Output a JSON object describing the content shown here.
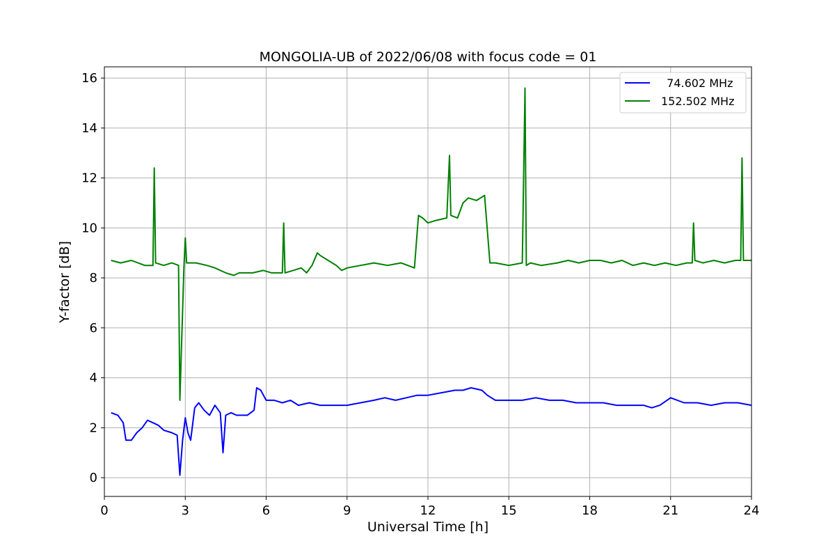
{
  "chart_data": {
    "type": "line",
    "title": "MONGOLIA-UB of 2022/06/08 with focus code = 01",
    "xlabel": "Universal Time [h]",
    "ylabel": "Y-factor [dB]",
    "xlim": [
      0,
      24
    ],
    "ylim": [
      -0.75,
      16.45
    ],
    "xticks": [
      0,
      3,
      6,
      9,
      12,
      15,
      18,
      21,
      24
    ],
    "yticks": [
      0,
      2,
      4,
      6,
      8,
      10,
      12,
      14,
      16
    ],
    "grid": true,
    "legend_position": "top-right",
    "series": [
      {
        "name": "  74.602 MHz",
        "color": "#0000ff",
        "x": [
          0.25,
          0.5,
          0.7,
          0.8,
          1.0,
          1.2,
          1.4,
          1.6,
          1.8,
          2.0,
          2.2,
          2.5,
          2.7,
          2.8,
          2.9,
          3.0,
          3.1,
          3.2,
          3.35,
          3.5,
          3.7,
          3.9,
          4.1,
          4.3,
          4.4,
          4.5,
          4.7,
          4.9,
          5.1,
          5.3,
          5.55,
          5.65,
          5.8,
          6.0,
          6.3,
          6.6,
          6.9,
          7.2,
          7.6,
          8.0,
          8.5,
          9.0,
          9.5,
          10.0,
          10.4,
          10.8,
          11.2,
          11.6,
          12.0,
          12.5,
          13.0,
          13.3,
          13.6,
          14.0,
          14.2,
          14.5,
          15.0,
          15.5,
          16.0,
          16.5,
          17.0,
          17.5,
          18.0,
          18.5,
          19.0,
          19.5,
          20.0,
          20.3,
          20.6,
          21.0,
          21.5,
          22.0,
          22.5,
          23.0,
          23.5,
          24.0
        ],
        "values": [
          2.6,
          2.5,
          2.2,
          1.5,
          1.5,
          1.8,
          2.0,
          2.3,
          2.2,
          2.1,
          1.9,
          1.8,
          1.7,
          0.1,
          1.5,
          2.4,
          1.8,
          1.5,
          2.8,
          3.0,
          2.7,
          2.5,
          2.9,
          2.6,
          1.0,
          2.5,
          2.6,
          2.5,
          2.5,
          2.5,
          2.7,
          3.6,
          3.5,
          3.1,
          3.1,
          3.0,
          3.1,
          2.9,
          3.0,
          2.9,
          2.9,
          2.9,
          3.0,
          3.1,
          3.2,
          3.1,
          3.2,
          3.3,
          3.3,
          3.4,
          3.5,
          3.5,
          3.6,
          3.5,
          3.3,
          3.1,
          3.1,
          3.1,
          3.2,
          3.1,
          3.1,
          3.0,
          3.0,
          3.0,
          2.9,
          2.9,
          2.9,
          2.8,
          2.9,
          3.2,
          3.0,
          3.0,
          2.9,
          3.0,
          3.0,
          2.9
        ]
      },
      {
        "name": "152.502 MHz",
        "color": "#008000",
        "x": [
          0.25,
          0.6,
          1.0,
          1.5,
          1.8,
          1.85,
          1.9,
          2.2,
          2.5,
          2.75,
          2.8,
          2.95,
          3.0,
          3.05,
          3.4,
          3.8,
          4.1,
          4.5,
          4.8,
          5.0,
          5.5,
          5.9,
          6.2,
          6.6,
          6.65,
          6.7,
          7.0,
          7.3,
          7.5,
          7.7,
          7.9,
          8.0,
          8.3,
          8.6,
          8.8,
          9.0,
          9.5,
          10.0,
          10.5,
          11.0,
          11.5,
          11.65,
          11.8,
          12.0,
          12.3,
          12.7,
          12.8,
          12.85,
          13.1,
          13.3,
          13.5,
          13.8,
          14.1,
          14.3,
          14.5,
          15.0,
          15.5,
          15.6,
          15.65,
          15.8,
          16.2,
          16.8,
          17.2,
          17.6,
          18.0,
          18.4,
          18.8,
          19.2,
          19.6,
          20.0,
          20.4,
          20.8,
          21.2,
          21.6,
          21.8,
          21.85,
          21.9,
          22.2,
          22.6,
          23.0,
          23.4,
          23.6,
          23.65,
          23.7,
          24.0
        ],
        "values": [
          8.7,
          8.6,
          8.7,
          8.5,
          8.5,
          12.4,
          8.6,
          8.5,
          8.6,
          8.5,
          3.1,
          8.4,
          9.6,
          8.6,
          8.6,
          8.5,
          8.4,
          8.2,
          8.1,
          8.2,
          8.2,
          8.3,
          8.2,
          8.2,
          10.2,
          8.2,
          8.3,
          8.4,
          8.2,
          8.5,
          9.0,
          8.9,
          8.7,
          8.5,
          8.3,
          8.4,
          8.5,
          8.6,
          8.5,
          8.6,
          8.4,
          10.5,
          10.4,
          10.2,
          10.3,
          10.4,
          12.9,
          10.5,
          10.4,
          11.0,
          11.2,
          11.1,
          11.3,
          8.6,
          8.6,
          8.5,
          8.6,
          15.6,
          8.5,
          8.6,
          8.5,
          8.6,
          8.7,
          8.6,
          8.7,
          8.7,
          8.6,
          8.7,
          8.5,
          8.6,
          8.5,
          8.6,
          8.5,
          8.6,
          8.6,
          10.2,
          8.7,
          8.6,
          8.7,
          8.6,
          8.7,
          8.7,
          12.8,
          8.7,
          8.7
        ]
      }
    ]
  }
}
